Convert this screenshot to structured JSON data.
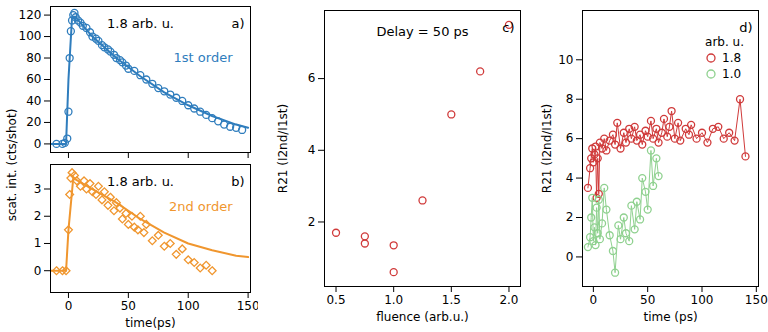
{
  "chart_data": [
    {
      "type": "scatter",
      "panel": "a)",
      "ylabel": "scat. int. (cts/shot)",
      "annotations": [
        {
          "text": "1.8 arb. u."
        },
        {
          "text": "1st order",
          "color": "#2f7dbd"
        }
      ],
      "xlim": [
        -15,
        152
      ],
      "ylim": [
        -8,
        128
      ],
      "xticks": [
        0,
        50,
        100,
        150
      ],
      "yticks": [
        0,
        20,
        40,
        60,
        80,
        100,
        120
      ],
      "tick_labels": "y",
      "series": [
        {
          "type": "scatter",
          "marker": "o",
          "color": "#2f7dbd",
          "x": [
            -10,
            -5,
            -3,
            -1,
            0,
            1,
            2,
            3,
            4,
            5,
            6,
            8,
            10,
            12,
            15,
            18,
            20,
            23,
            25,
            28,
            30,
            33,
            35,
            38,
            40,
            43,
            45,
            48,
            50,
            55,
            60,
            65,
            70,
            75,
            80,
            85,
            90,
            95,
            100,
            105,
            110,
            115,
            120,
            125,
            130,
            135,
            140,
            145
          ],
          "values": [
            0,
            0,
            1,
            5,
            30,
            80,
            105,
            115,
            120,
            122,
            118,
            115,
            113,
            110,
            108,
            104,
            100,
            98,
            96,
            92,
            90,
            88,
            86,
            83,
            80,
            78,
            76,
            73,
            70,
            68,
            64,
            60,
            56,
            52,
            49,
            46,
            43,
            40,
            36,
            33,
            30,
            27,
            24,
            21,
            18,
            16,
            15,
            13
          ]
        },
        {
          "type": "line",
          "color": "#2f7dbd",
          "x": [
            -15,
            -2,
            0,
            3,
            6,
            20,
            40,
            60,
            80,
            100,
            120,
            140,
            150
          ],
          "values": [
            0,
            0,
            60,
            118,
            118,
            100,
            80,
            63,
            48,
            36,
            26,
            18,
            15
          ]
        }
      ]
    },
    {
      "type": "scatter",
      "panel": "b)",
      "xlabel": "time(ps)",
      "annotations": [
        {
          "text": "1.8 arb. u."
        },
        {
          "text": "2nd order",
          "color": "#f0962e"
        }
      ],
      "xlim": [
        -15,
        152
      ],
      "ylim": [
        -0.8,
        3.9
      ],
      "xticks": [
        0,
        50,
        100,
        150
      ],
      "yticks": [
        0,
        1,
        2,
        3
      ],
      "series": [
        {
          "type": "scatter",
          "marker": "diamond",
          "color": "#f0962e",
          "x": [
            -10,
            -5,
            -2,
            0,
            1,
            2,
            3,
            5,
            7,
            10,
            13,
            15,
            18,
            20,
            23,
            25,
            28,
            30,
            33,
            35,
            38,
            40,
            43,
            45,
            48,
            50,
            53,
            55,
            58,
            60,
            63,
            65,
            70,
            75,
            80,
            85,
            90,
            95,
            100,
            105,
            110,
            115,
            120
          ],
          "values": [
            0,
            0,
            0,
            1.5,
            2.8,
            3.4,
            3.6,
            3.5,
            3.3,
            3.1,
            3.3,
            3.0,
            3.2,
            2.9,
            2.8,
            3.1,
            2.6,
            2.9,
            2.4,
            2.7,
            2.2,
            2.5,
            2.3,
            1.9,
            2.1,
            1.7,
            2.0,
            1.6,
            1.5,
            2.0,
            1.4,
            1.7,
            1.1,
            1.3,
            0.9,
            1.0,
            0.6,
            0.8,
            0.4,
            0.3,
            0.1,
            0.2,
            0.0
          ]
        },
        {
          "type": "line",
          "color": "#f0962e",
          "x": [
            -15,
            -2,
            0,
            4,
            8,
            20,
            40,
            60,
            80,
            100,
            120,
            140,
            150
          ],
          "values": [
            0,
            0,
            1.5,
            3.4,
            3.3,
            3.0,
            2.5,
            1.9,
            1.4,
            1.0,
            0.75,
            0.55,
            0.5
          ]
        }
      ]
    },
    {
      "type": "scatter",
      "panel": "c)",
      "title": "Delay = 50 ps",
      "xlabel": "fluence (arb.u.)",
      "ylabel": "R21 (I2nd/I1st)",
      "xlim": [
        0.4,
        2.1
      ],
      "ylim": [
        0.2,
        7.9
      ],
      "xticks": [
        0.5,
        {
          "value": 1,
          "label": "1.0"
        },
        1.5,
        {
          "value": 2,
          "label": "2.0"
        }
      ],
      "yticks": [
        2,
        4,
        6
      ],
      "series": [
        {
          "type": "scatter",
          "marker": "o",
          "color": "#d03a3a",
          "x": [
            0.5,
            0.75,
            0.75,
            1.0,
            1.0,
            1.25,
            1.5,
            1.75,
            2.0
          ],
          "values": [
            1.7,
            1.6,
            1.4,
            1.35,
            0.6,
            2.6,
            5.0,
            6.2,
            7.5
          ]
        }
      ]
    },
    {
      "type": "line",
      "panel": "d)",
      "xlabel": "time (ps)",
      "ylabel": "R21 (I2nd/I1st)",
      "legend": "upper right",
      "legend_title": "arb. u.",
      "xlim": [
        -10,
        152
      ],
      "ylim": [
        -1.5,
        12.5
      ],
      "xticks": [
        0,
        50,
        100,
        150
      ],
      "yticks": [
        0,
        2,
        4,
        6,
        8,
        10
      ],
      "series": [
        {
          "name": "1.8",
          "color": "#d03a3a",
          "marker": "o",
          "x": [
            -5,
            -3,
            -2,
            -1,
            0,
            1,
            2,
            3,
            4,
            5,
            6,
            8,
            10,
            12,
            15,
            18,
            20,
            22,
            25,
            28,
            30,
            33,
            35,
            38,
            40,
            43,
            45,
            48,
            50,
            53,
            55,
            58,
            60,
            63,
            65,
            68,
            70,
            72,
            75,
            78,
            80,
            85,
            88,
            90,
            95,
            100,
            105,
            110,
            115,
            120,
            125,
            130,
            135,
            140
          ],
          "values": [
            3.5,
            4.5,
            5.0,
            5.5,
            4.8,
            5.2,
            5.6,
            3.0,
            5.0,
            3.2,
            5.8,
            5.5,
            6.0,
            5.4,
            5.9,
            6.2,
            5.7,
            6.8,
            5.5,
            6.3,
            5.8,
            6.5,
            6.0,
            6.6,
            5.9,
            6.2,
            5.7,
            6.4,
            6.1,
            6.9,
            6.0,
            6.5,
            5.8,
            6.3,
            7.0,
            6.1,
            6.6,
            7.4,
            6.0,
            6.8,
            5.9,
            6.5,
            6.2,
            6.7,
            6.0,
            6.3,
            5.8,
            6.5,
            6.6,
            6.0,
            6.3,
            5.9,
            8.0,
            5.1
          ]
        },
        {
          "name": "1.0",
          "color": "#8fd18f",
          "marker": "o",
          "x": [
            -5,
            -3,
            -2,
            -1,
            0,
            1,
            2,
            3,
            4,
            5,
            6,
            8,
            10,
            12,
            15,
            18,
            20,
            23,
            25,
            28,
            30,
            33,
            35,
            38,
            40,
            43,
            45,
            48,
            50,
            53,
            55,
            58,
            60
          ],
          "values": [
            0.5,
            1.0,
            2.0,
            3.0,
            0.8,
            1.5,
            0.6,
            2.5,
            1.2,
            2.9,
            0.9,
            1.7,
            3.5,
            2.4,
            1.1,
            0.3,
            -0.8,
            1.6,
            0.9,
            2.0,
            1.2,
            0.8,
            2.6,
            1.4,
            2.8,
            1.9,
            4.0,
            3.3,
            2.4,
            5.4,
            3.6,
            5.0,
            4.1
          ]
        }
      ]
    }
  ]
}
